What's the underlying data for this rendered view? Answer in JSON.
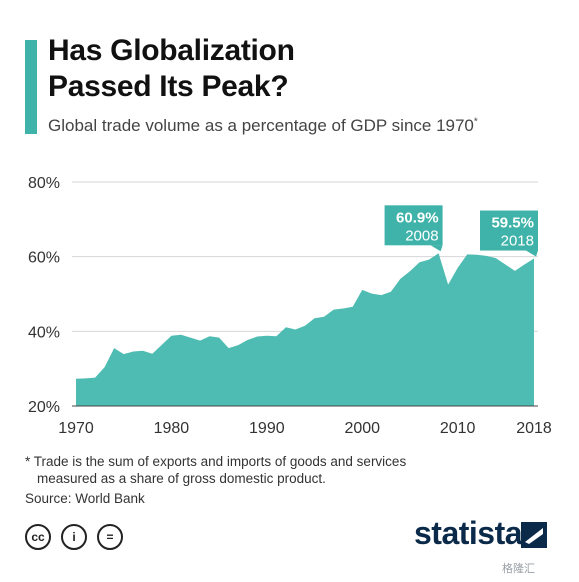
{
  "header": {
    "title_line1": "Has Globalization",
    "title_line2": "Passed Its Peak?",
    "subtitle": "Global trade volume as a percentage of GDP since 1970",
    "subtitle_mark": "*"
  },
  "chart_data": {
    "type": "area",
    "title": "Has Globalization Passed Its Peak?",
    "subtitle": "Global trade volume as a percentage of GDP since 1970*",
    "xlabel": "",
    "ylabel": "",
    "x": [
      1970,
      1971,
      1972,
      1973,
      1974,
      1975,
      1976,
      1977,
      1978,
      1979,
      1980,
      1981,
      1982,
      1983,
      1984,
      1985,
      1986,
      1987,
      1988,
      1989,
      1990,
      1991,
      1992,
      1993,
      1994,
      1995,
      1996,
      1997,
      1998,
      1999,
      2000,
      2001,
      2002,
      2003,
      2004,
      2005,
      2006,
      2007,
      2008,
      2009,
      2010,
      2011,
      2012,
      2013,
      2014,
      2015,
      2016,
      2017,
      2018
    ],
    "values": [
      27.3,
      27.4,
      27.6,
      30.4,
      35.5,
      33.9,
      34.6,
      34.8,
      34.0,
      36.4,
      38.8,
      39.1,
      38.3,
      37.5,
      38.7,
      38.3,
      35.5,
      36.3,
      37.7,
      38.6,
      38.8,
      38.7,
      41.1,
      40.5,
      41.5,
      43.5,
      43.9,
      45.8,
      46.1,
      46.6,
      51.1,
      50.1,
      49.7,
      50.6,
      54.1,
      56.1,
      58.5,
      59.2,
      60.9,
      52.5,
      57.0,
      60.6,
      60.5,
      60.2,
      59.6,
      57.9,
      56.2,
      57.9,
      59.5
    ],
    "ylim": [
      20,
      80
    ],
    "yticks": [
      "20%",
      "40%",
      "60%",
      "80%"
    ],
    "yticks_values": [
      20,
      40,
      60,
      80
    ],
    "xticks": [
      "1970",
      "1980",
      "1990",
      "2000",
      "2010",
      "2018"
    ],
    "xticks_values": [
      1970,
      1980,
      1990,
      2000,
      2010,
      2018
    ],
    "grid": true,
    "color": "#4ebcb2",
    "annotations": [
      {
        "x": 2008,
        "y": 60.9,
        "value_label": "60.9%",
        "year_label": "2008"
      },
      {
        "x": 2018,
        "y": 59.5,
        "value_label": "59.5%",
        "year_label": "2018"
      }
    ]
  },
  "footer": {
    "footnote_line1": "* Trade is the sum of exports and imports of goods and services",
    "footnote_line2": "measured as a share of gross domestic product.",
    "source": "Source: World Bank",
    "cc_icons": [
      {
        "icon": "cc-icon",
        "glyph": "cc"
      },
      {
        "icon": "attribution-icon",
        "glyph": "i"
      },
      {
        "icon": "no-derivatives-icon",
        "glyph": "="
      }
    ],
    "logo": "statista",
    "watermark": "格隆汇"
  },
  "colors": {
    "accent": "#3fb3a9",
    "area": "#4ebcb2",
    "annotation_box": "#3fb3a9",
    "logo": "#0b2a4a"
  }
}
